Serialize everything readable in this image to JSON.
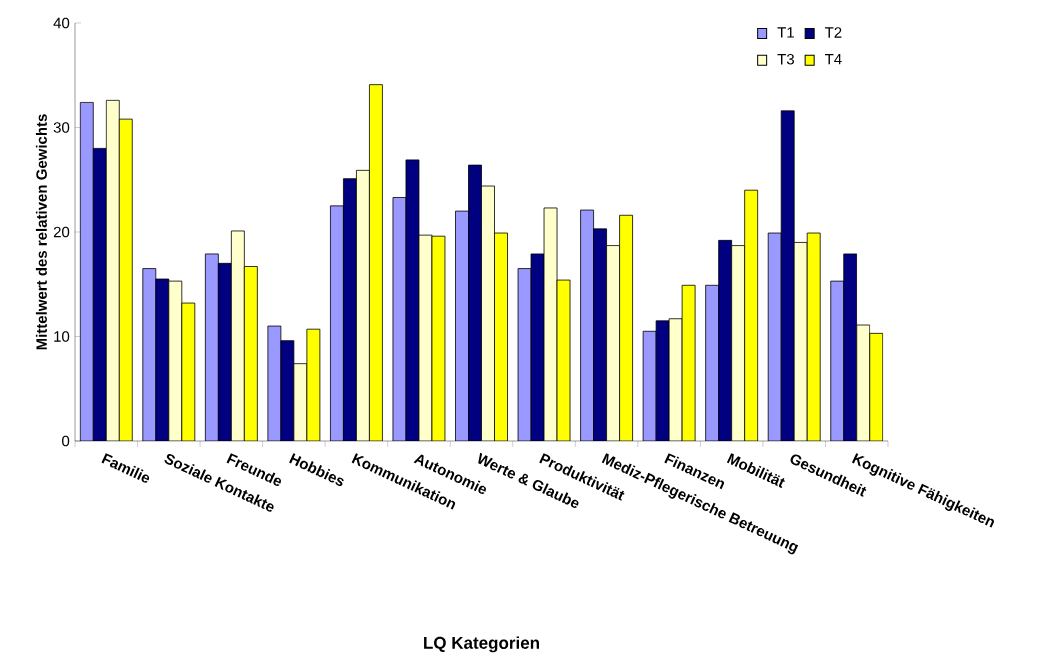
{
  "chart_data": {
    "type": "bar",
    "xlabel": "LQ Kategorien",
    "ylabel": "Mittelwert des relativen Gewichts",
    "categories": [
      "Familie",
      "Soziale Kontakte",
      "Freunde",
      "Hobbies",
      "Kommunikation",
      "Autonomie",
      "Werte & Glaube",
      "Produktivität",
      "Mediz-Pflegerische Betreuung",
      "Finanzen",
      "Mobilität",
      "Gesundheit",
      "Kognitive Fähigkeiten"
    ],
    "series": [
      {
        "name": "T1",
        "color": "#9999ff",
        "values": [
          32.4,
          16.5,
          17.9,
          11.0,
          22.5,
          23.3,
          22.0,
          16.5,
          22.1,
          10.5,
          14.9,
          19.9,
          15.3
        ]
      },
      {
        "name": "T2",
        "color": "#000080",
        "values": [
          28.0,
          15.5,
          17.0,
          9.6,
          25.1,
          26.9,
          26.4,
          17.9,
          20.3,
          11.5,
          19.2,
          31.6,
          17.9
        ]
      },
      {
        "name": "T3",
        "color": "#ffffcc",
        "values": [
          32.6,
          15.3,
          20.1,
          7.4,
          25.9,
          19.7,
          24.4,
          22.3,
          18.7,
          11.7,
          18.7,
          19.0,
          11.1
        ]
      },
      {
        "name": "T4",
        "color": "#ffff00",
        "values": [
          30.8,
          13.2,
          16.7,
          10.7,
          34.1,
          19.6,
          19.9,
          15.4,
          21.6,
          14.9,
          24.0,
          19.9,
          10.3
        ]
      }
    ],
    "ylim": [
      0,
      40
    ],
    "yticks": [
      0,
      10,
      20,
      30,
      40
    ],
    "legend": "top right"
  }
}
